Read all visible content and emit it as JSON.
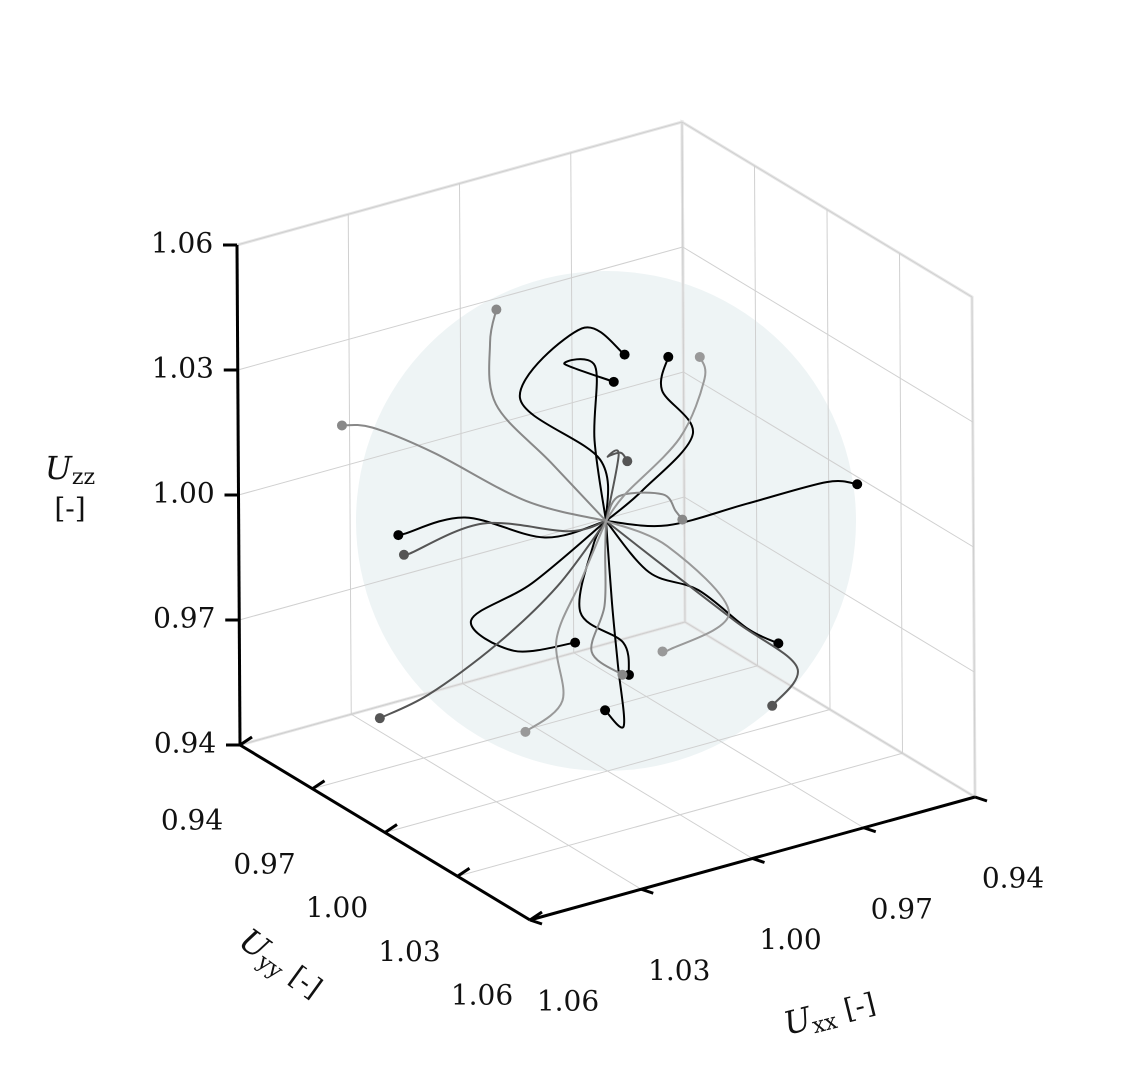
{
  "chart_data": {
    "type": "trajectories3d",
    "xlabel": {
      "symbol": "U",
      "sub": "xx",
      "unit": "[-]"
    },
    "ylabel": {
      "symbol": "U",
      "sub": "yy",
      "unit": "[-]"
    },
    "zlabel": {
      "symbol": "U",
      "sub": "zz",
      "unit": "[-]"
    },
    "xlim": [
      0.94,
      1.06
    ],
    "ylim": [
      0.94,
      1.06
    ],
    "zlim": [
      0.94,
      1.06
    ],
    "xticks": [
      0.94,
      0.97,
      {
        "value": 1,
        "label": "1.00"
      },
      1.03,
      1.06
    ],
    "yticks": [
      0.94,
      0.97,
      {
        "value": 1,
        "label": "1.00"
      },
      1.03,
      1.06
    ],
    "zticks": [
      0.94,
      0.97,
      {
        "value": 1,
        "label": "1.00"
      },
      1.03,
      1.06
    ],
    "grid": true,
    "sphere": {
      "center": [
        1,
        1,
        1
      ],
      "radius": 0.06,
      "color": "#eef4f5"
    },
    "series": [
      {
        "color": "#000000",
        "x": [
          1,
          0.995,
          1.01,
          0.99,
          0.985
        ],
        "y": [
          1,
          0.99,
          0.98,
          0.975,
          0.985
        ],
        "z": [
          1,
          1.01,
          1.025,
          1.035,
          1.031
        ]
      },
      {
        "color": "#000000",
        "x": [
          1,
          0.99,
          0.97,
          0.975,
          0.97
        ],
        "y": [
          1,
          1.0,
          0.99,
          0.985,
          0.98
        ],
        "z": [
          1,
          1.005,
          1.01,
          1.02,
          1.025
        ]
      },
      {
        "color": "#000000",
        "x": [
          1,
          1.01,
          1.025,
          1.035,
          1.03
        ],
        "y": [
          1,
          0.99,
          0.98,
          0.97,
          0.96
        ],
        "z": [
          1,
          0.995,
          1.0,
          0.995,
          0.99
        ]
      },
      {
        "color": "#000000",
        "x": [
          1,
          0.99,
          0.975,
          0.96,
          0.955
        ],
        "y": [
          1,
          1.01,
          1.02,
          1.03,
          1.035
        ],
        "z": [
          1,
          1.0,
          1.005,
          1.01,
          1.01
        ]
      },
      {
        "color": "#000000",
        "x": [
          1,
          1.005,
          1.01,
          1.015,
          1.02
        ],
        "y": [
          1,
          1.01,
          1.02,
          1.03,
          1.03
        ],
        "z": [
          1,
          0.985,
          0.975,
          0.965,
          0.97
        ]
      },
      {
        "color": "#000000",
        "x": [
          1,
          1.02,
          1.03,
          1.025,
          1.015
        ],
        "y": [
          1,
          1.0,
          0.99,
          1.0,
          1.01
        ],
        "z": [
          1,
          0.99,
          0.98,
          0.975,
          0.978
        ]
      },
      {
        "color": "#000000",
        "x": [
          1,
          0.99,
          0.98,
          0.985,
          0.975
        ],
        "y": [
          1,
          0.98,
          0.965,
          0.96,
          0.965
        ],
        "z": [
          1,
          1.01,
          1.02,
          1.02,
          1.015
        ]
      },
      {
        "color": "#000000",
        "x": [
          1,
          1.01,
          1.02,
          1.015,
          1.02
        ],
        "y": [
          1,
          1.01,
          1.02,
          1.03,
          1.04
        ],
        "z": [
          1,
          1.0,
          0.99,
          0.985,
          0.982
        ]
      },
      {
        "color": "#000000",
        "x": [
          1,
          0.995,
          0.985,
          0.975,
          0.97
        ],
        "y": [
          1,
          1.01,
          1.015,
          1.02,
          1.025
        ],
        "z": [
          1,
          0.99,
          0.985,
          0.975,
          0.972
        ]
      },
      {
        "color": "#555555",
        "x": [
          1,
          1.01,
          1.02,
          1.035,
          1.045
        ],
        "y": [
          1,
          0.995,
          0.985,
          0.98,
          0.975
        ],
        "z": [
          1,
          0.985,
          0.97,
          0.96,
          0.955
        ]
      },
      {
        "color": "#555555",
        "x": [
          1,
          0.99,
          0.975,
          0.965,
          0.975
        ],
        "y": [
          1,
          1.005,
          1.015,
          1.025,
          1.03
        ],
        "z": [
          1,
          0.99,
          0.975,
          0.965,
          0.96
        ]
      },
      {
        "color": "#555555",
        "x": [
          1,
          1.01,
          1.03,
          1.04,
          1.035
        ],
        "y": [
          1,
          1.0,
          0.995,
          0.98,
          0.97
        ],
        "z": [
          1,
          1.0,
          1.005,
          0.995,
          0.99
        ]
      },
      {
        "color": "#555555",
        "x": [
          1,
          0.99,
          0.98,
          0.97,
          0.965
        ],
        "y": [
          1,
          0.99,
          0.97,
          0.96,
          0.955
        ],
        "z": [
          1,
          1.01,
          1.0,
          0.995,
          0.99
        ]
      },
      {
        "color": "#888888",
        "x": [
          1,
          1.005,
          1.01,
          1.005,
          1.0
        ],
        "y": [
          1,
          0.985,
          0.97,
          0.96,
          0.955
        ],
        "z": [
          1,
          1.01,
          1.02,
          1.03,
          1.035
        ]
      },
      {
        "color": "#888888",
        "x": [
          1,
          1.015,
          1.03,
          1.04,
          1.045
        ],
        "y": [
          1,
          0.99,
          0.975,
          0.965,
          0.96
        ],
        "z": [
          1,
          1.005,
          1.015,
          1.02,
          1.02
        ]
      },
      {
        "color": "#888888",
        "x": [
          1,
          0.99,
          0.975,
          0.965,
          0.96
        ],
        "y": [
          1,
          0.99,
          0.985,
          0.975,
          0.97
        ],
        "z": [
          1,
          1.0,
          0.995,
          0.985,
          0.98
        ]
      },
      {
        "color": "#888888",
        "x": [
          1,
          1.01,
          1.02,
          1.03,
          1.025
        ],
        "y": [
          1,
          1.015,
          1.03,
          1.04,
          1.045
        ],
        "z": [
          1,
          1.0,
          0.995,
          0.99,
          0.985
        ]
      },
      {
        "color": "#999999",
        "x": [
          1,
          0.995,
          0.98,
          0.97,
          0.968
        ],
        "y": [
          1,
          1.0,
          1.0,
          0.995,
          0.99
        ],
        "z": [
          1,
          1.005,
          1.015,
          1.025,
          1.028
        ]
      },
      {
        "color": "#999999",
        "x": [
          1,
          1.01,
          1.02,
          1.025,
          1.035
        ],
        "y": [
          1,
          1.005,
          1.01,
          1.02,
          1.02
        ],
        "z": [
          1,
          0.99,
          0.98,
          0.97,
          0.965
        ]
      },
      {
        "color": "#999999",
        "x": [
          1,
          0.99,
          0.98,
          0.99,
          0.985
        ],
        "y": [
          1,
          1.01,
          1.02,
          1.01,
          1.0
        ],
        "z": [
          1,
          0.995,
          0.98,
          0.97,
          0.965
        ]
      }
    ]
  }
}
